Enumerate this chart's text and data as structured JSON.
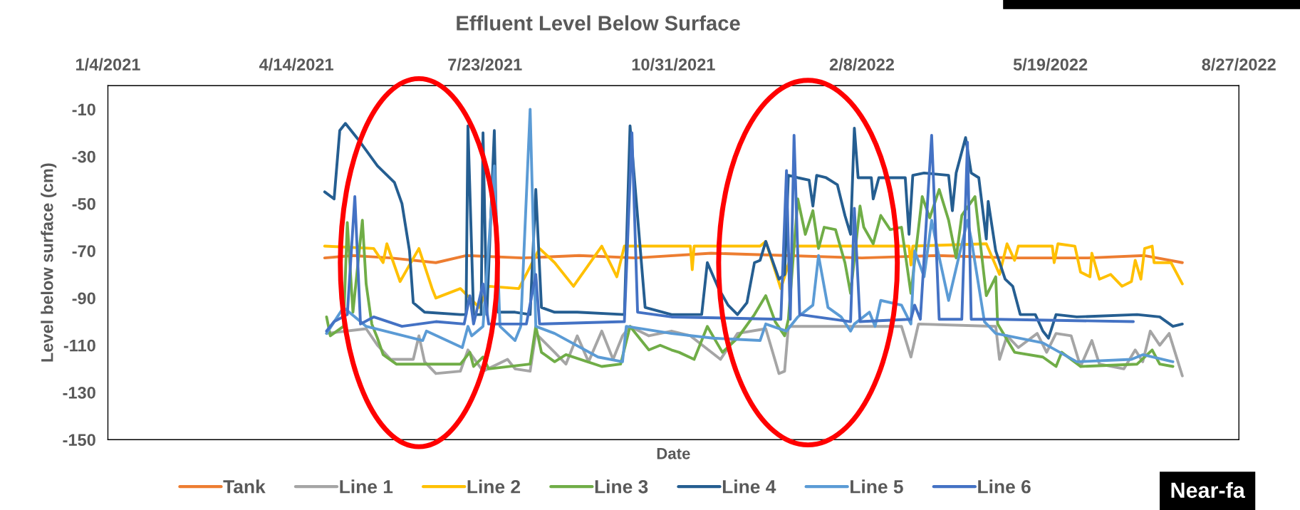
{
  "chart_data": {
    "type": "line",
    "title": "Effluent Level Below Surface",
    "xlabel": "Date",
    "ylabel": "Level below surface (cm)",
    "xlim": [
      "2021-01-04",
      "2022-08-27"
    ],
    "xticks": [
      {
        "value": "2021-01-04",
        "label": "1/4/2021"
      },
      {
        "value": "2021-04-14",
        "label": "4/14/2021"
      },
      {
        "value": "2021-07-23",
        "label": "7/23/2021"
      },
      {
        "value": "2021-10-31",
        "label": "10/31/2021"
      },
      {
        "value": "2022-02-08",
        "label": "2/8/2022"
      },
      {
        "value": "2022-05-19",
        "label": "5/19/2022"
      },
      {
        "value": "2022-08-27",
        "label": "8/27/2022"
      }
    ],
    "ylim": [
      -150,
      0
    ],
    "yticks": [
      -150,
      -130,
      -110,
      -90,
      -70,
      -50,
      -30,
      -10
    ],
    "grid": false,
    "legend": "bottom",
    "line_style": "solid",
    "annotations": [
      "Near-fa"
    ],
    "series": [
      {
        "name": "Tank",
        "color": "#ed7d31",
        "x": [
          "2021-04-29",
          "2021-05-14",
          "2021-06-03",
          "2021-06-27",
          "2021-07-13",
          "2021-08-12",
          "2021-09-11",
          "2021-10-11",
          "2021-11-20",
          "2021-12-30",
          "2022-02-08",
          "2022-03-20",
          "2022-04-29",
          "2022-06-08",
          "2022-07-08",
          "2022-07-28"
        ],
        "values": [
          -73,
          -72,
          -73,
          -75,
          -72,
          -73,
          -72,
          -73,
          -71,
          -72,
          -73,
          -72,
          -73,
          -73,
          -72,
          -75
        ]
      },
      {
        "name": "Line 1",
        "color": "#a5a5a5",
        "x": [
          "2021-04-30",
          "2021-05-21",
          "2021-05-27",
          "2021-06-03",
          "2021-06-15",
          "2021-06-18",
          "2021-06-21",
          "2021-06-27",
          "2021-07-10",
          "2021-07-14",
          "2021-07-22",
          "2021-08-04",
          "2021-08-08",
          "2021-08-16",
          "2021-08-19",
          "2021-08-29",
          "2021-09-04",
          "2021-09-10",
          "2021-09-16",
          "2021-09-23",
          "2021-09-29",
          "2021-10-04",
          "2021-10-08",
          "2021-10-18",
          "2021-10-30",
          "2021-11-09",
          "2021-11-25",
          "2021-12-04",
          "2021-12-19",
          "2021-12-26",
          "2021-12-29",
          "2021-12-31",
          "2022-01-23",
          "2022-03-01",
          "2022-03-06",
          "2022-03-10",
          "2022-04-20",
          "2022-04-22",
          "2022-04-26",
          "2022-05-02",
          "2022-05-12",
          "2022-05-17",
          "2022-05-22",
          "2022-05-30",
          "2022-06-04",
          "2022-06-10",
          "2022-06-14",
          "2022-06-27",
          "2022-07-03",
          "2022-07-07",
          "2022-07-11",
          "2022-07-16",
          "2022-07-21",
          "2022-07-28"
        ],
        "values": [
          -105,
          -103,
          -110,
          -116,
          -116,
          -106,
          -117,
          -122,
          -121,
          -112,
          -121,
          -116,
          -120,
          -121,
          -105,
          -113,
          -118,
          -106,
          -117,
          -104,
          -116,
          -106,
          -102,
          -106,
          -104,
          -106,
          -116,
          -105,
          -103,
          -122,
          -121,
          -102,
          -102,
          -102,
          -115,
          -101,
          -102,
          -116,
          -106,
          -111,
          -105,
          -113,
          -105,
          -106,
          -119,
          -108,
          -118,
          -120,
          -112,
          -117,
          -104,
          -110,
          -105,
          -123
        ]
      },
      {
        "name": "Line 2",
        "color": "#ffc000",
        "x": [
          "2021-04-29",
          "2021-05-25",
          "2021-05-30",
          "2021-06-01",
          "2021-06-08",
          "2021-06-18",
          "2021-06-25",
          "2021-06-27",
          "2021-07-10",
          "2021-07-20",
          "2021-07-25",
          "2021-08-10",
          "2021-08-21",
          "2021-08-29",
          "2021-09-08",
          "2021-09-23",
          "2021-10-01",
          "2021-10-05",
          "2021-10-30",
          "2021-11-09",
          "2021-11-10",
          "2021-11-11",
          "2021-12-16",
          "2021-12-19",
          "2021-12-27",
          "2022-01-03",
          "2022-03-05",
          "2022-03-06",
          "2022-03-07",
          "2022-04-15",
          "2022-04-22",
          "2022-04-26",
          "2022-04-30",
          "2022-05-02",
          "2022-05-20",
          "2022-05-21",
          "2022-05-23",
          "2022-06-01",
          "2022-06-04",
          "2022-06-09",
          "2022-06-10",
          "2022-06-14",
          "2022-06-20",
          "2022-06-26",
          "2022-07-01",
          "2022-07-03",
          "2022-07-06",
          "2022-07-08",
          "2022-07-12",
          "2022-07-13",
          "2022-07-22",
          "2022-07-28"
        ],
        "values": [
          -68,
          -69,
          -75,
          -67,
          -83,
          -69,
          -86,
          -90,
          -86,
          -94,
          -85,
          -86,
          -69,
          -75,
          -85,
          -68,
          -81,
          -68,
          -68,
          -68,
          -78,
          -68,
          -68,
          -66,
          -86,
          -68,
          -68,
          -76,
          -68,
          -67,
          -80,
          -67,
          -74,
          -68,
          -68,
          -75,
          -67,
          -68,
          -79,
          -81,
          -71,
          -82,
          -80,
          -85,
          -83,
          -74,
          -82,
          -69,
          -68,
          -75,
          -75,
          -84
        ]
      },
      {
        "name": "Line 3",
        "color": "#70ad47",
        "x": [
          "2021-04-30",
          "2021-05-02",
          "2021-05-09",
          "2021-05-11",
          "2021-05-14",
          "2021-05-19",
          "2021-05-21",
          "2021-05-24",
          "2021-05-27",
          "2021-05-30",
          "2021-06-06",
          "2021-07-10",
          "2021-07-15",
          "2021-07-17",
          "2021-07-22",
          "2021-07-25",
          "2021-08-16",
          "2021-08-19",
          "2021-08-22",
          "2021-08-29",
          "2021-09-04",
          "2021-09-23",
          "2021-10-03",
          "2021-10-08",
          "2021-10-18",
          "2021-10-24",
          "2021-10-30",
          "2021-11-03",
          "2021-11-11",
          "2021-11-18",
          "2021-11-26",
          "2021-12-04",
          "2021-12-13",
          "2021-12-19",
          "2021-12-24",
          "2021-12-29",
          "2021-12-31",
          "2022-01-05",
          "2022-01-09",
          "2022-01-13",
          "2022-01-16",
          "2022-01-19",
          "2022-01-25",
          "2022-01-30",
          "2022-02-02",
          "2022-02-07",
          "2022-02-09",
          "2022-02-14",
          "2022-02-18",
          "2022-02-23",
          "2022-03-01",
          "2022-03-06",
          "2022-03-12",
          "2022-03-16",
          "2022-03-21",
          "2022-03-26",
          "2022-03-30",
          "2022-04-02",
          "2022-04-09",
          "2022-04-15",
          "2022-04-20",
          "2022-04-21",
          "2022-04-30",
          "2022-05-15",
          "2022-05-22",
          "2022-05-25",
          "2022-06-04",
          "2022-07-04",
          "2022-07-12",
          "2022-07-16",
          "2022-07-23"
        ],
        "values": [
          -98,
          -106,
          -102,
          -58,
          -96,
          -57,
          -84,
          -101,
          -107,
          -114,
          -118,
          -118,
          -113,
          -119,
          -115,
          -120,
          -118,
          -102,
          -113,
          -117,
          -114,
          -119,
          -118,
          -102,
          -112,
          -110,
          -112,
          -113,
          -116,
          -102,
          -113,
          -107,
          -97,
          -89,
          -100,
          -106,
          -99,
          -48,
          -63,
          -53,
          -69,
          -60,
          -61,
          -75,
          -88,
          -51,
          -60,
          -67,
          -55,
          -61,
          -60,
          -88,
          -47,
          -56,
          -44,
          -57,
          -73,
          -55,
          -47,
          -89,
          -81,
          -101,
          -113,
          -115,
          -119,
          -113,
          -119,
          -118,
          -112,
          -118,
          -119
        ]
      },
      {
        "name": "Line 4",
        "color": "#255e91",
        "x": [
          "2021-04-29",
          "2021-05-04",
          "2021-05-07",
          "2021-05-10",
          "2021-05-17",
          "2021-05-27",
          "2021-06-05",
          "2021-06-09",
          "2021-06-13",
          "2021-06-15",
          "2021-06-21",
          "2021-07-10",
          "2021-07-13",
          "2021-07-14",
          "2021-07-17",
          "2021-07-21",
          "2021-07-22",
          "2021-07-24",
          "2021-07-28",
          "2021-07-30",
          "2021-08-08",
          "2021-08-16",
          "2021-08-19",
          "2021-08-22",
          "2021-08-29",
          "2021-09-10",
          "2021-10-05",
          "2021-10-08",
          "2021-10-16",
          "2021-10-30",
          "2021-11-15",
          "2021-11-18",
          "2021-11-24",
          "2021-11-29",
          "2021-12-04",
          "2021-12-09",
          "2021-12-13",
          "2021-12-16",
          "2021-12-19",
          "2021-12-26",
          "2021-12-29",
          "2021-12-31",
          "2022-01-05",
          "2022-01-11",
          "2022-01-13",
          "2022-01-15",
          "2022-01-20",
          "2022-01-26",
          "2022-01-30",
          "2022-02-02",
          "2022-02-04",
          "2022-02-06",
          "2022-02-13",
          "2022-02-14",
          "2022-02-17",
          "2022-03-03",
          "2022-03-05",
          "2022-03-07",
          "2022-03-13",
          "2022-03-26",
          "2022-03-28",
          "2022-03-30",
          "2022-04-04",
          "2022-04-07",
          "2022-04-11",
          "2022-04-15",
          "2022-04-16",
          "2022-04-20",
          "2022-04-25",
          "2022-04-29",
          "2022-05-03",
          "2022-05-11",
          "2022-05-15",
          "2022-05-18",
          "2022-05-22",
          "2022-06-02",
          "2022-07-04",
          "2022-07-16",
          "2022-07-23",
          "2022-07-28"
        ],
        "values": [
          -45,
          -48,
          -19,
          -16,
          -23,
          -34,
          -41,
          -50,
          -70,
          -92,
          -96,
          -97,
          -97,
          -17,
          -97,
          -97,
          -20,
          -97,
          -19,
          -96,
          -96,
          -97,
          -44,
          -94,
          -96,
          -96,
          -97,
          -17,
          -94,
          -97,
          -97,
          -75,
          -86,
          -93,
          -97,
          -92,
          -75,
          -74,
          -66,
          -82,
          -80,
          -38,
          -39,
          -40,
          -51,
          -38,
          -39,
          -42,
          -55,
          -63,
          -18,
          -39,
          -39,
          -48,
          -39,
          -39,
          -63,
          -38,
          -37,
          -38,
          -53,
          -37,
          -22,
          -37,
          -39,
          -65,
          -49,
          -70,
          -82,
          -85,
          -97,
          -97,
          -104,
          -107,
          -97,
          -98,
          -97,
          -98,
          -102,
          -101
        ]
      },
      {
        "name": "Line 5",
        "color": "#5b9bd5",
        "x": [
          "2021-04-30",
          "2021-05-09",
          "2021-05-12",
          "2021-05-21",
          "2021-06-20",
          "2021-06-22",
          "2021-07-11",
          "2021-07-14",
          "2021-07-16",
          "2021-07-22",
          "2021-07-28",
          "2021-07-31",
          "2021-08-08",
          "2021-08-11",
          "2021-08-16",
          "2021-08-19",
          "2021-08-29",
          "2021-09-21",
          "2021-10-04",
          "2021-10-06",
          "2021-10-30",
          "2021-11-21",
          "2021-12-16",
          "2021-12-19",
          "2021-12-30",
          "2022-01-05",
          "2022-01-13",
          "2022-01-16",
          "2022-01-21",
          "2022-01-28",
          "2022-02-02",
          "2022-02-04",
          "2022-02-12",
          "2022-02-15",
          "2022-02-18",
          "2022-03-01",
          "2022-03-06",
          "2022-03-08",
          "2022-03-13",
          "2022-03-17",
          "2022-03-20",
          "2022-03-26",
          "2022-04-05",
          "2022-04-07",
          "2022-04-14",
          "2022-04-20",
          "2022-05-15",
          "2022-06-02",
          "2022-07-01",
          "2022-07-07",
          "2022-07-23"
        ],
        "values": [
          -105,
          -94,
          -96,
          -102,
          -108,
          -104,
          -111,
          -102,
          -106,
          -102,
          -34,
          -102,
          -108,
          -102,
          -10,
          -102,
          -105,
          -115,
          -117,
          -102,
          -105,
          -107,
          -108,
          -101,
          -104,
          -98,
          -93,
          -72,
          -94,
          -98,
          -104,
          -101,
          -96,
          -102,
          -91,
          -93,
          -101,
          -70,
          -81,
          -57,
          -69,
          -91,
          -57,
          -65,
          -100,
          -105,
          -109,
          -117,
          -116,
          -114,
          -117
        ]
      },
      {
        "name": "Line 6",
        "color": "#4472c4",
        "x": [
          "2021-04-30",
          "2021-05-04",
          "2021-05-11",
          "2021-05-15",
          "2021-05-18",
          "2021-05-25",
          "2021-06-09",
          "2021-06-27",
          "2021-07-12",
          "2021-07-15",
          "2021-07-17",
          "2021-07-22",
          "2021-07-25",
          "2021-08-14",
          "2021-08-19",
          "2021-08-21",
          "2021-10-05",
          "2021-10-09",
          "2021-10-12",
          "2021-10-30",
          "2021-12-27",
          "2021-12-30",
          "2022-01-01",
          "2022-01-03",
          "2022-01-06",
          "2022-02-02",
          "2022-02-04",
          "2022-02-07",
          "2022-03-06",
          "2022-03-08",
          "2022-03-11",
          "2022-03-17",
          "2022-03-21",
          "2022-04-02",
          "2022-04-05",
          "2022-04-07",
          "2022-04-20",
          "2022-07-02"
        ],
        "values": [
          -104,
          -100,
          -97,
          -47,
          -101,
          -98,
          -102,
          -100,
          -101,
          -89,
          -101,
          -84,
          -101,
          -101,
          -80,
          -101,
          -100,
          -20,
          -96,
          -98,
          -99,
          -36,
          -99,
          -21,
          -97,
          -100,
          -52,
          -100,
          -99,
          -93,
          -99,
          -21,
          -99,
          -99,
          -24,
          -99,
          -99,
          -100
        ]
      }
    ]
  }
}
